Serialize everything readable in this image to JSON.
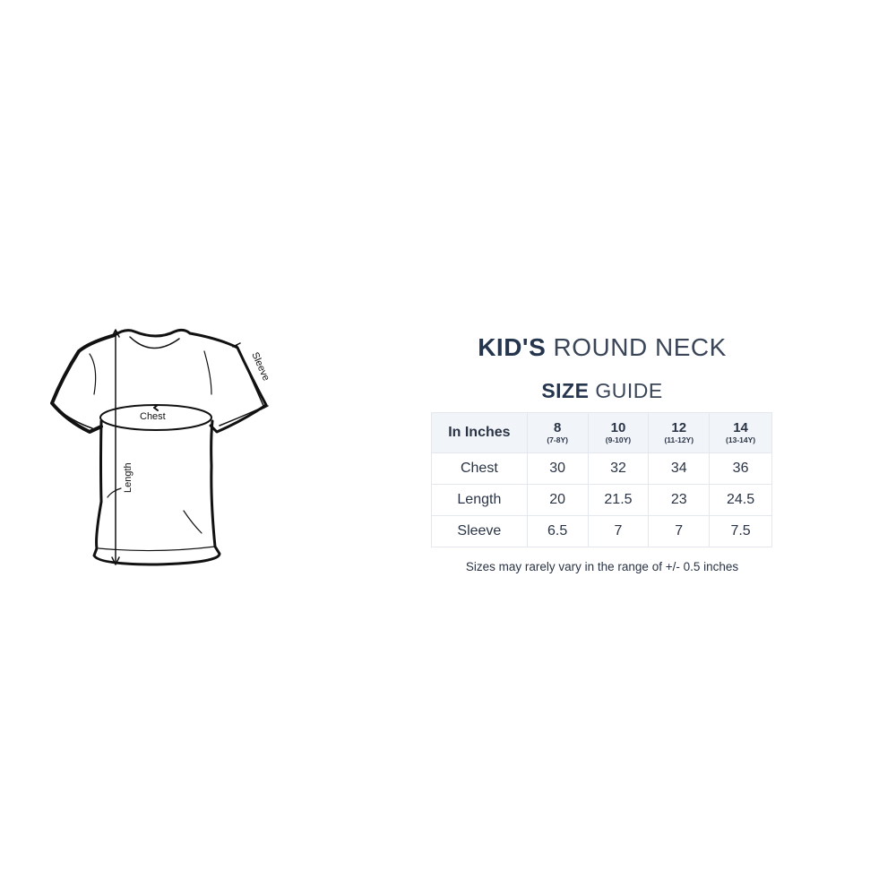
{
  "diagram": {
    "labels": {
      "chest": "Chest",
      "length": "Length",
      "sleeve": "Sleeve"
    }
  },
  "heading": {
    "line1_bold": "KID'S",
    "line1_light": "ROUND NECK",
    "line2_bold": "SIZE",
    "line2_light": "GUIDE"
  },
  "table": {
    "corner": "In Inches",
    "columns": [
      {
        "size": "8",
        "age": "(7-8Y)"
      },
      {
        "size": "10",
        "age": "(9-10Y)"
      },
      {
        "size": "12",
        "age": "(11-12Y)"
      },
      {
        "size": "14",
        "age": "(13-14Y)"
      }
    ],
    "rows": [
      {
        "label": "Chest",
        "values": [
          "30",
          "32",
          "34",
          "36"
        ]
      },
      {
        "label": "Length",
        "values": [
          "20",
          "21.5",
          "23",
          "24.5"
        ]
      },
      {
        "label": "Sleeve",
        "values": [
          "6.5",
          "7",
          "7",
          "7.5"
        ]
      }
    ]
  },
  "note": "Sizes may rarely vary in the range of +/- 0.5 inches",
  "colors": {
    "heading": "#24354d",
    "header_bg": "#f1f4f8",
    "border": "#e4e8ee"
  }
}
